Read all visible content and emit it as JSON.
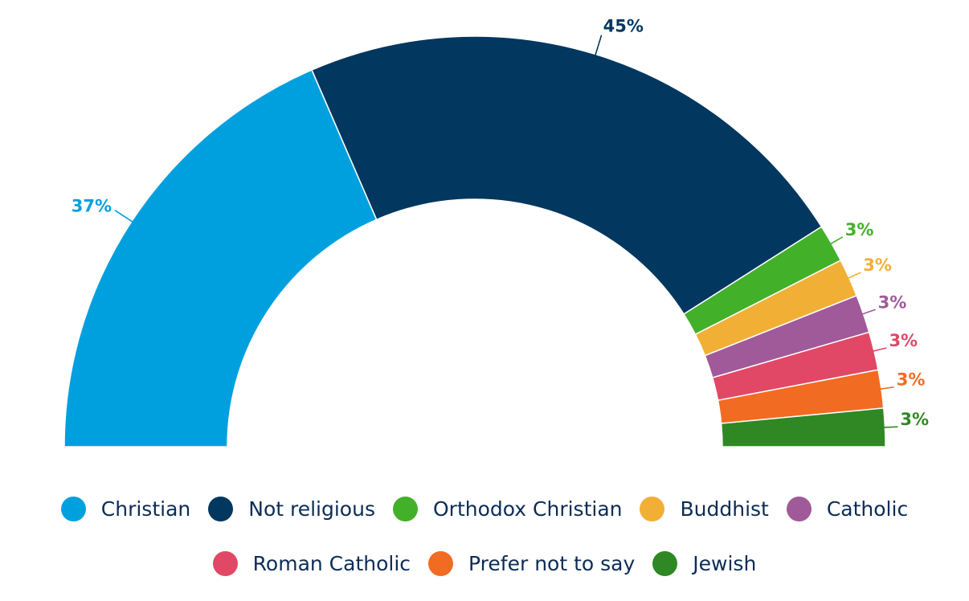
{
  "chart_data": {
    "type": "pie",
    "subtype": "semi-donut",
    "title": "",
    "legend_position": "bottom",
    "series": [
      {
        "name": "Christian",
        "value": 37,
        "label": "37%",
        "color": "#00a0df"
      },
      {
        "name": "Not religious",
        "value": 45,
        "label": "45%",
        "color": "#02375f"
      },
      {
        "name": "Orthodox Christian",
        "value": 3,
        "label": "3%",
        "color": "#43b02a"
      },
      {
        "name": "Buddhist",
        "value": 3,
        "label": "3%",
        "color": "#f2af36"
      },
      {
        "name": "Catholic",
        "value": 3,
        "label": "3%",
        "color": "#a05a99"
      },
      {
        "name": "Roman Catholic",
        "value": 3,
        "label": "3%",
        "color": "#e04866"
      },
      {
        "name": "Prefer not to say",
        "value": 3,
        "label": "3%",
        "color": "#f26b22"
      },
      {
        "name": "Jewish",
        "value": 3,
        "label": "3%",
        "color": "#2f8823"
      }
    ]
  },
  "legend": {
    "row1": [
      {
        "label": "Christian",
        "color": "#00a0df"
      },
      {
        "label": "Not religious",
        "color": "#02375f"
      },
      {
        "label": "Orthodox Christian",
        "color": "#43b02a"
      },
      {
        "label": "Buddhist",
        "color": "#f2af36"
      },
      {
        "label": "Catholic",
        "color": "#a05a99"
      }
    ],
    "row2": [
      {
        "label": "Roman Catholic",
        "color": "#e04866"
      },
      {
        "label": "Prefer not to say",
        "color": "#f26b22"
      },
      {
        "label": "Jewish",
        "color": "#2f8823"
      }
    ]
  }
}
